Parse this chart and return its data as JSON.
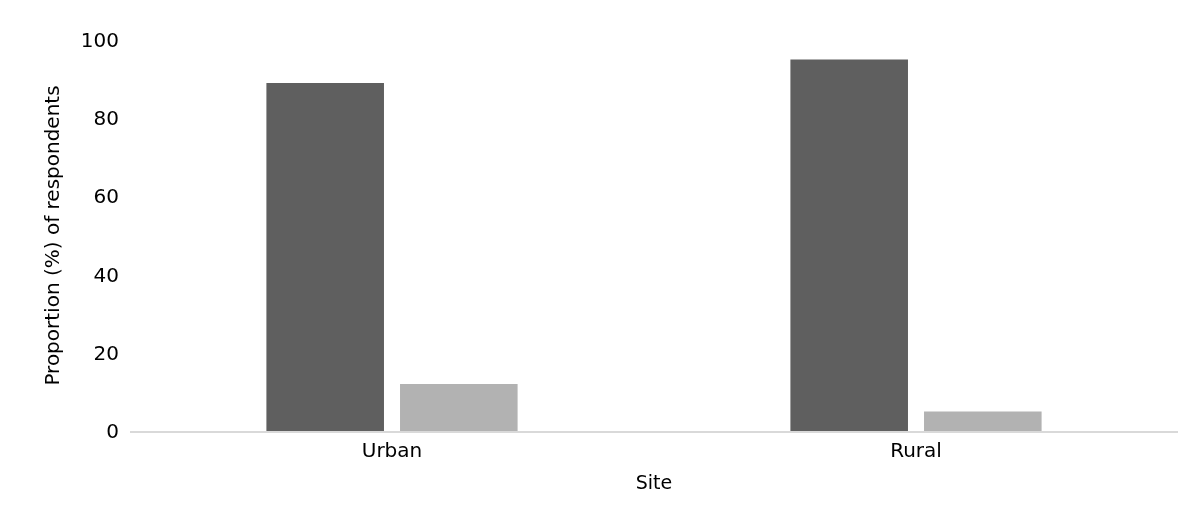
{
  "chart_data": {
    "type": "bar",
    "xlabel": "Site",
    "ylabel": "Proportion (%) of respondents",
    "categories": [
      "Urban",
      "Rural"
    ],
    "series": [
      {
        "color": "#5f5f5f",
        "values": [
          89,
          95
        ]
      },
      {
        "color": "#b2b2b2",
        "values": [
          12,
          5
        ]
      }
    ],
    "ylim": [
      0,
      100
    ],
    "yticks": [
      0,
      20,
      40,
      60,
      80,
      100
    ]
  }
}
